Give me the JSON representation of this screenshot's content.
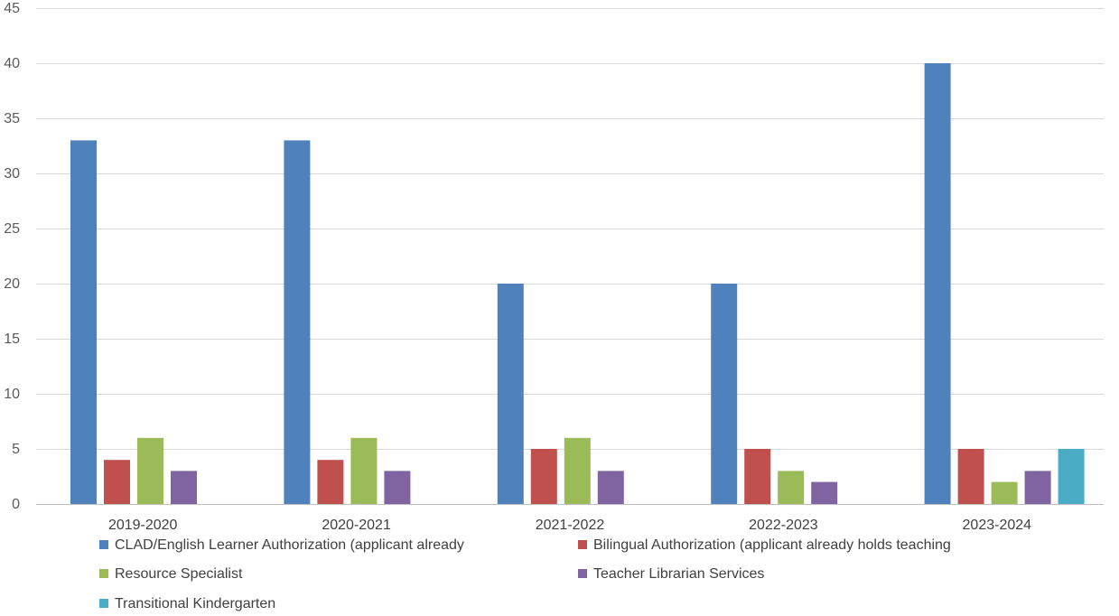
{
  "chart_data": {
    "type": "bar",
    "title": "",
    "xlabel": "",
    "ylabel": "",
    "ylim": [
      0,
      45
    ],
    "ytick_step": 5,
    "grid": true,
    "legend_position": "bottom",
    "categories": [
      "2019-2020",
      "2020-2021",
      "2021-2022",
      "2022-2023",
      "2023-2024"
    ],
    "series": [
      {
        "name": "CLAD/English Learner Authorization (applicant already",
        "color": "#4f81bd",
        "values": [
          33,
          33,
          20,
          20,
          40
        ]
      },
      {
        "name": "Bilingual Authorization (applicant already holds teaching",
        "color": "#c0504d",
        "values": [
          4,
          4,
          5,
          5,
          5
        ]
      },
      {
        "name": "Resource Specialist",
        "color": "#9bbb59",
        "values": [
          6,
          6,
          6,
          3,
          2
        ]
      },
      {
        "name": "Teacher Librarian Services",
        "color": "#8064a2",
        "values": [
          3,
          3,
          3,
          2,
          3
        ]
      },
      {
        "name": "Transitional Kindergarten",
        "color": "#4bacc6",
        "values": [
          null,
          null,
          null,
          null,
          5
        ]
      }
    ]
  }
}
